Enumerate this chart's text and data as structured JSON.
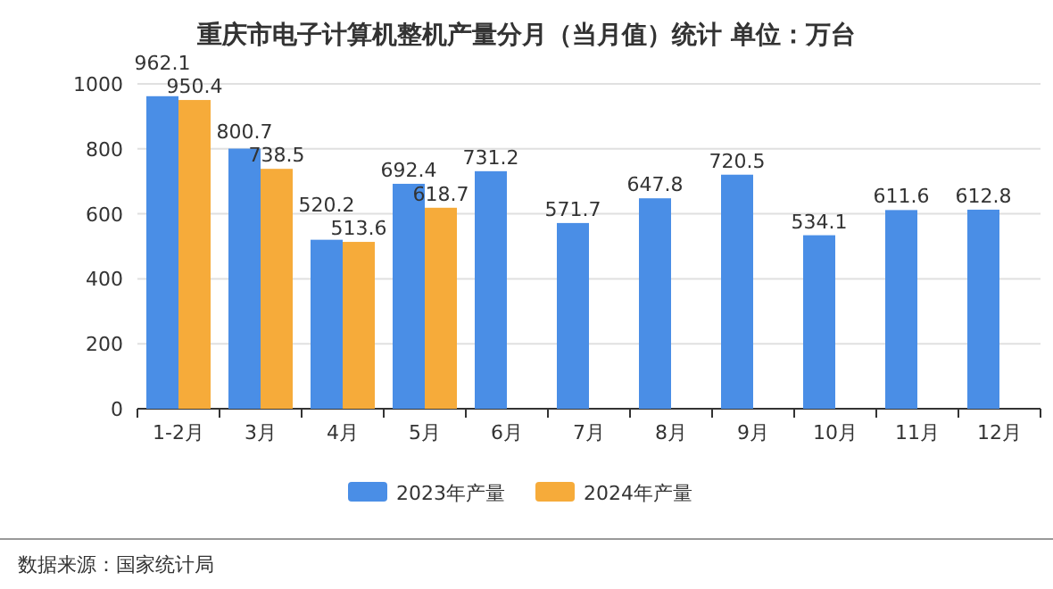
{
  "chart_data": {
    "type": "bar",
    "title": "重庆市电子计算机整机产量分月（当月值）统计  单位：万台",
    "categories": [
      "1-2月",
      "3月",
      "4月",
      "5月",
      "6月",
      "7月",
      "8月",
      "9月",
      "10月",
      "11月",
      "12月"
    ],
    "series": [
      {
        "name": "2023年产量",
        "color": "#4a8ee6",
        "values": [
          962.1,
          800.7,
          520.2,
          692.4,
          731.2,
          571.7,
          647.8,
          720.5,
          534.1,
          611.6,
          612.8
        ]
      },
      {
        "name": "2024年产量",
        "color": "#f6ab3a",
        "values": [
          950.4,
          738.5,
          513.6,
          618.7,
          null,
          null,
          null,
          null,
          null,
          null,
          null
        ]
      }
    ],
    "ylim": [
      0,
      1000
    ],
    "yticks": [
      0,
      200,
      400,
      600,
      800,
      1000
    ],
    "grid": "y",
    "legend": "bottom",
    "data_labels": true,
    "annotations": [
      "数据来源：国家统计局"
    ]
  }
}
